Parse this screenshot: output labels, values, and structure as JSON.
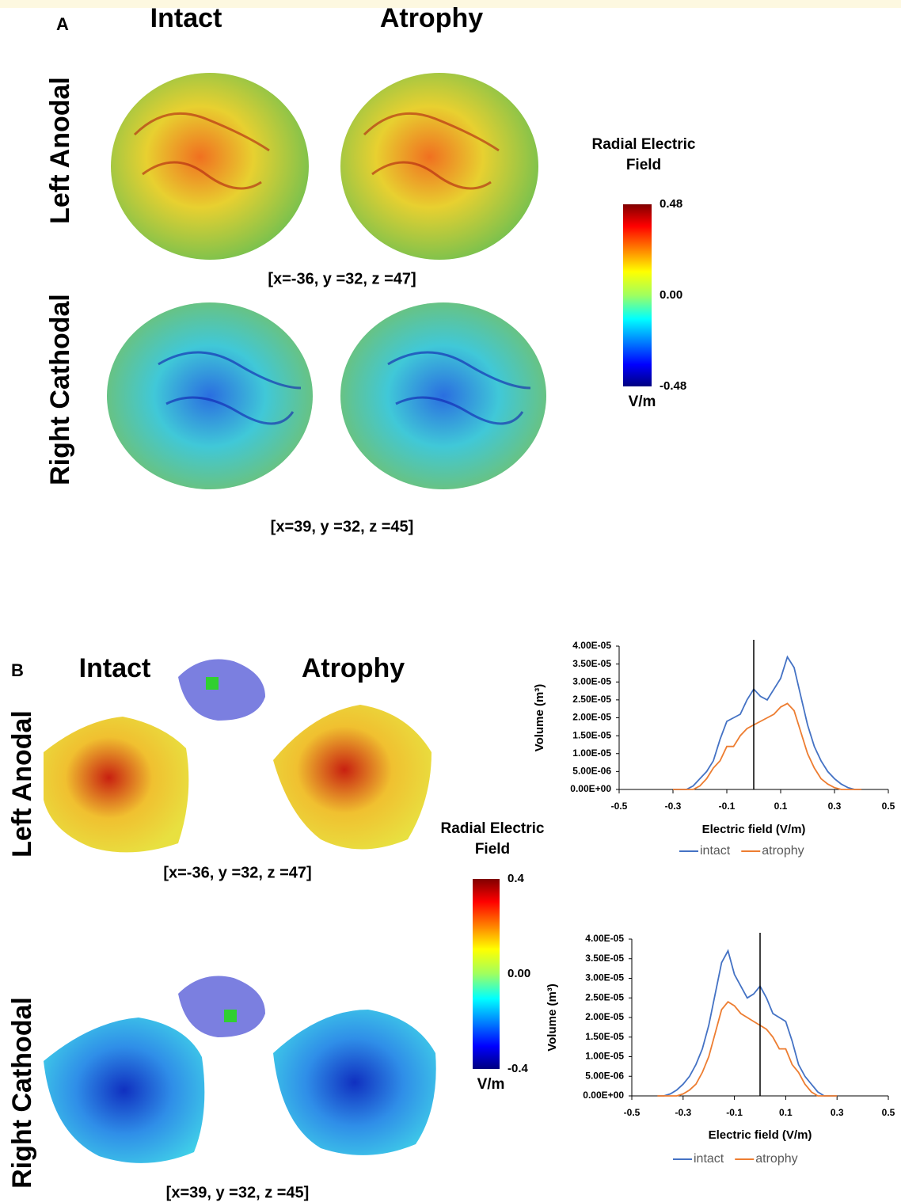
{
  "panel_a": {
    "label": "A",
    "columns": [
      "Intact",
      "Atrophy"
    ],
    "rows": [
      "Left Anodal",
      "Right Cathodal"
    ],
    "coordinates": [
      "[x=-36, y =32, z =47]",
      "[x=39, y =32, z =45]"
    ],
    "colorbar": {
      "title": [
        "Radial Electric",
        "Field"
      ],
      "unit": "V/m",
      "lim": [
        -0.48,
        0.48
      ],
      "ticks": [
        0.48,
        {
          "value": 0,
          "label": "0.00"
        },
        -0.48
      ]
    }
  },
  "panel_b": {
    "label": "B",
    "columns": [
      "Intact",
      "Atrophy"
    ],
    "rows": [
      "Left Anodal",
      "Right Cathodal"
    ],
    "coordinates": [
      "[x=-36, y =32, z =47]",
      "[x=39, y =32, z =45]"
    ],
    "colorbar": {
      "title": [
        "Radial Electric",
        "Field"
      ],
      "unit": "V/m",
      "lim": [
        -0.4,
        0.4
      ],
      "ticks": [
        0.4,
        {
          "value": 0,
          "label": "0.00"
        },
        -0.4
      ]
    }
  },
  "chart_data": [
    {
      "type": "line",
      "xlabel": "Electric field (V/m)",
      "ylabel": "Volume (m³)",
      "xlim": [
        -0.5,
        0.5
      ],
      "xticks": [
        -0.5,
        -0.3,
        -0.1,
        0.1,
        0.3,
        0.5
      ],
      "ylim": [
        0,
        4e-05
      ],
      "yticks": [
        {
          "value": 0,
          "label": "0.00E+00"
        },
        {
          "value": 5e-06,
          "label": "5.00E-06"
        },
        {
          "value": 1e-05,
          "label": "1.00E-05"
        },
        {
          "value": 1.5e-05,
          "label": "1.50E-05"
        },
        {
          "value": 2e-05,
          "label": "2.00E-05"
        },
        {
          "value": 2.5e-05,
          "label": "2.50E-05"
        },
        {
          "value": 3e-05,
          "label": "3.00E-05"
        },
        {
          "value": 3.5e-05,
          "label": "3.50E-05"
        },
        {
          "value": 4e-05,
          "label": "4.00E-05"
        }
      ],
      "vline": 0,
      "legend": "bottom",
      "x": [
        -0.3,
        -0.275,
        -0.25,
        -0.225,
        -0.2,
        -0.175,
        -0.15,
        -0.125,
        -0.1,
        -0.075,
        -0.05,
        -0.025,
        0,
        0.025,
        0.05,
        0.075,
        0.1,
        0.125,
        0.15,
        0.175,
        0.2,
        0.225,
        0.25,
        0.275,
        0.3,
        0.325,
        0.35,
        0.375,
        0.4
      ],
      "series": [
        {
          "name": "intact",
          "color": "#4472c4",
          "values": [
            0,
            0,
            0,
            1e-06,
            3e-06,
            5e-06,
            8e-06,
            1.4e-05,
            1.9e-05,
            2e-05,
            2.1e-05,
            2.5e-05,
            2.8e-05,
            2.6e-05,
            2.5e-05,
            2.8e-05,
            3.1e-05,
            3.7e-05,
            3.4e-05,
            2.6e-05,
            1.8e-05,
            1.2e-05,
            8e-06,
            5e-06,
            3e-06,
            1.5e-06,
            5e-07,
            0,
            0
          ]
        },
        {
          "name": "atrophy",
          "color": "#ed7d31",
          "values": [
            0,
            0,
            0,
            0,
            1e-06,
            3e-06,
            6e-06,
            8e-06,
            1.2e-05,
            1.2e-05,
            1.5e-05,
            1.7e-05,
            1.8e-05,
            1.9e-05,
            2e-05,
            2.1e-05,
            2.3e-05,
            2.4e-05,
            2.2e-05,
            1.6e-05,
            1e-05,
            6e-06,
            3e-06,
            1.5e-06,
            5e-07,
            0,
            0,
            0,
            0
          ]
        }
      ]
    },
    {
      "type": "line",
      "xlabel": "Electric field (V/m)",
      "ylabel": "Volume (m³)",
      "xlim": [
        -0.5,
        0.5
      ],
      "xticks": [
        -0.5,
        -0.3,
        -0.1,
        0.1,
        0.3,
        0.5
      ],
      "ylim": [
        0,
        4e-05
      ],
      "yticks": [
        {
          "value": 0,
          "label": "0.00E+00"
        },
        {
          "value": 5e-06,
          "label": "5.00E-06"
        },
        {
          "value": 1e-05,
          "label": "1.00E-05"
        },
        {
          "value": 1.5e-05,
          "label": "1.50E-05"
        },
        {
          "value": 2e-05,
          "label": "2.00E-05"
        },
        {
          "value": 2.5e-05,
          "label": "2.50E-05"
        },
        {
          "value": 3e-05,
          "label": "3.00E-05"
        },
        {
          "value": 3.5e-05,
          "label": "3.50E-05"
        },
        {
          "value": 4e-05,
          "label": "4.00E-05"
        }
      ],
      "vline": 0,
      "legend": "bottom",
      "x": [
        -0.4,
        -0.375,
        -0.35,
        -0.325,
        -0.3,
        -0.275,
        -0.25,
        -0.225,
        -0.2,
        -0.175,
        -0.15,
        -0.125,
        -0.1,
        -0.075,
        -0.05,
        -0.025,
        0,
        0.025,
        0.05,
        0.075,
        0.1,
        0.125,
        0.15,
        0.175,
        0.2,
        0.225,
        0.25,
        0.275,
        0.3
      ],
      "series": [
        {
          "name": "intact",
          "color": "#4472c4",
          "values": [
            0,
            0,
            5e-07,
            1.5e-06,
            3e-06,
            5e-06,
            8e-06,
            1.2e-05,
            1.8e-05,
            2.6e-05,
            3.4e-05,
            3.7e-05,
            3.1e-05,
            2.8e-05,
            2.5e-05,
            2.6e-05,
            2.8e-05,
            2.5e-05,
            2.1e-05,
            2e-05,
            1.9e-05,
            1.4e-05,
            8e-06,
            5e-06,
            3e-06,
            1e-06,
            0,
            0,
            0
          ]
        },
        {
          "name": "atrophy",
          "color": "#ed7d31",
          "values": [
            0,
            0,
            0,
            0,
            5e-07,
            1.5e-06,
            3e-06,
            6e-06,
            1e-05,
            1.6e-05,
            2.2e-05,
            2.4e-05,
            2.3e-05,
            2.1e-05,
            2e-05,
            1.9e-05,
            1.8e-05,
            1.7e-05,
            1.5e-05,
            1.2e-05,
            1.2e-05,
            8e-06,
            6e-06,
            3e-06,
            1e-06,
            0,
            0,
            0,
            0
          ]
        }
      ]
    }
  ]
}
